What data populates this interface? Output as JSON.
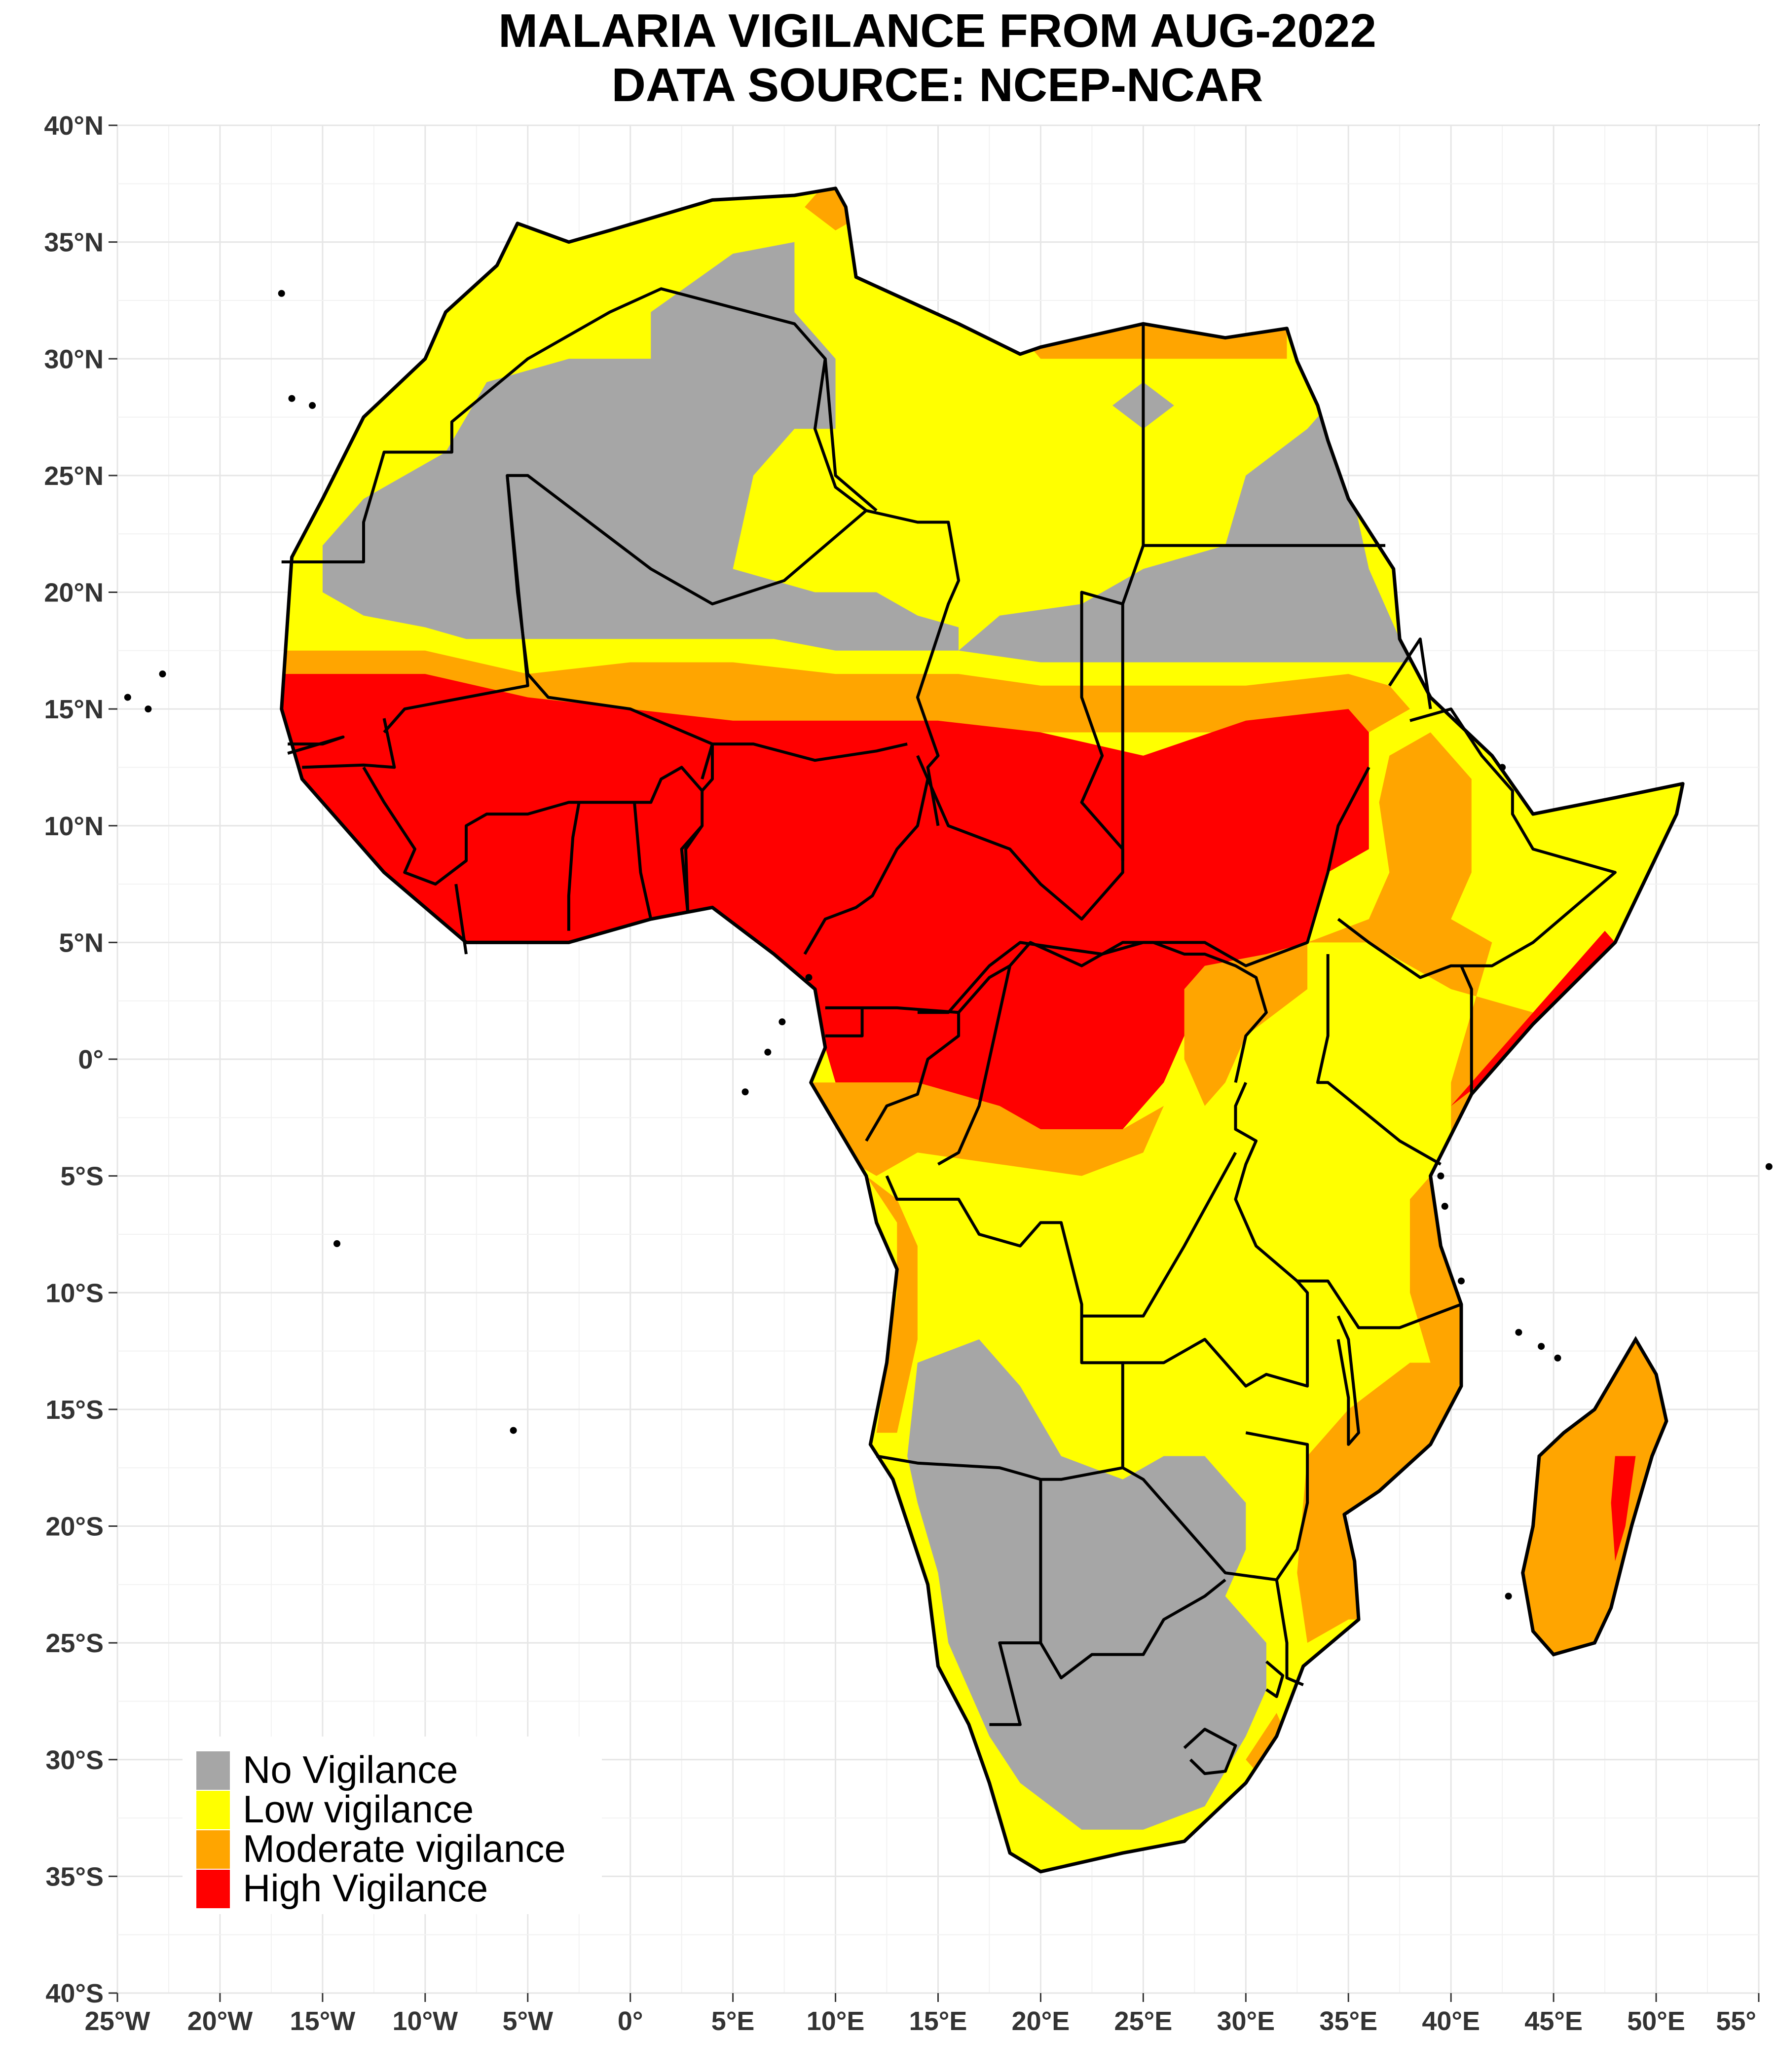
{
  "title": {
    "line1": "MALARIA VIGILANCE FROM AUG-2022",
    "line2": "DATA SOURCE: NCEP-NCAR"
  },
  "axes": {
    "x_ticks": [
      "25°W",
      "20°W",
      "15°W",
      "10°W",
      "5°W",
      "0°",
      "5°E",
      "10°E",
      "15°E",
      "20°E",
      "25°E",
      "30°E",
      "35°E",
      "40°E",
      "45°E",
      "50°E",
      "55°"
    ],
    "y_ticks": [
      "40°N",
      "35°N",
      "30°N",
      "25°N",
      "20°N",
      "15°N",
      "10°N",
      "5°N",
      "0°",
      "5°S",
      "10°S",
      "15°S",
      "20°S",
      "25°S",
      "30°S",
      "35°S",
      "40°S"
    ],
    "x_range": [
      -25,
      55
    ],
    "y_range": [
      -40,
      40
    ],
    "grid": true
  },
  "legend": {
    "placement": "bottom-left",
    "items": [
      {
        "label": "No Vigilance",
        "color": "#a6a6a6"
      },
      {
        "label": "Low vigilance",
        "color": "#ffff00"
      },
      {
        "label": "Moderate vigilance",
        "color": "#ffa500"
      },
      {
        "label": "High Vigilance",
        "color": "#ff0000"
      }
    ]
  },
  "colors": {
    "none": "#a6a6a6",
    "low": "#ffff00",
    "moderate": "#ffa500",
    "high": "#ff0000",
    "border": "#000000"
  }
}
